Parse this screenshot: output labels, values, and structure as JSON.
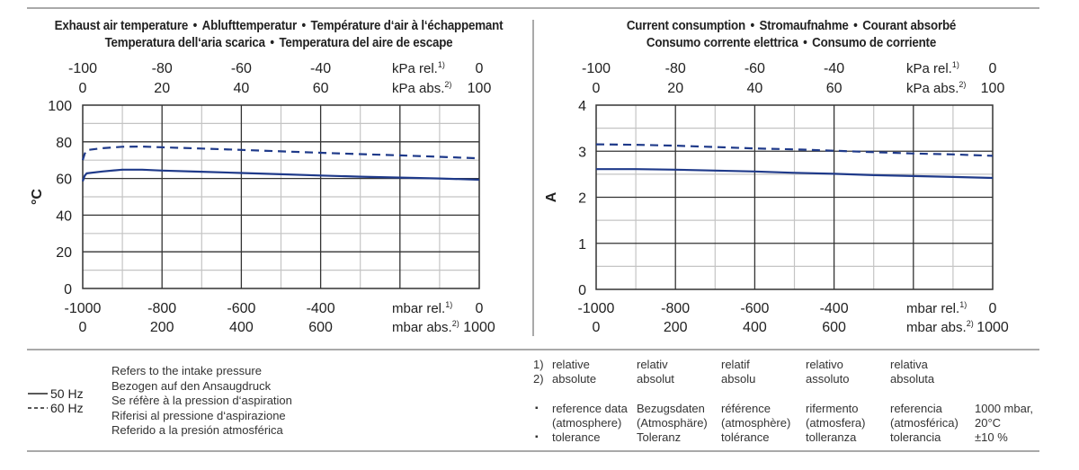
{
  "chart_data": [
    {
      "type": "line",
      "title_lines": [
        [
          "Exhaust air temperature",
          "Ablufttemperatur",
          "Température d‘air à l‘échappemant"
        ],
        [
          "Temperatura dell‘aria scarica",
          "Temperatura del aire de escape"
        ]
      ],
      "ylabel": "°C",
      "ylim": [
        0,
        100
      ],
      "yticks": [
        "0",
        "20",
        "40",
        "60",
        "80",
        "100"
      ],
      "xlim": [
        -1000,
        0
      ],
      "x_bottom_rel": {
        "ticks": [
          "-1000",
          "-800",
          "-600",
          "-400",
          "0"
        ],
        "unit": "mbar rel.",
        "sup": "1)"
      },
      "x_bottom_abs": {
        "ticks": [
          "0",
          "200",
          "400",
          "600",
          "1000"
        ],
        "unit": "mbar abs.",
        "sup": "2)"
      },
      "x_top_rel": {
        "ticks": [
          "-100",
          "-80",
          "-60",
          "-40",
          "0"
        ],
        "unit": "kPa rel.",
        "sup": "1)"
      },
      "x_top_abs": {
        "ticks": [
          "0",
          "20",
          "40",
          "60",
          "100"
        ],
        "unit": "kPa abs.",
        "sup": "2)"
      },
      "grid": true,
      "series": [
        {
          "name": "50 Hz",
          "style": "solid",
          "x": [
            -1000,
            -995,
            -990,
            -950,
            -900,
            -850,
            -800,
            -700,
            -600,
            -500,
            -400,
            -300,
            -200,
            -100,
            0
          ],
          "y": [
            58.5,
            61.5,
            62.8,
            63.8,
            64.8,
            64.8,
            64.3,
            63.7,
            63.0,
            62.3,
            61.6,
            61.0,
            60.5,
            60.0,
            59.3
          ]
        },
        {
          "name": "60 Hz",
          "style": "dashed",
          "x": [
            -1000,
            -995,
            -990,
            -950,
            -900,
            -850,
            -800,
            -700,
            -600,
            -500,
            -400,
            -300,
            -200,
            -100,
            0
          ],
          "y": [
            70.0,
            73.5,
            75.5,
            76.5,
            77.3,
            77.4,
            77.0,
            76.3,
            75.6,
            74.8,
            74.0,
            73.3,
            72.6,
            71.8,
            71.0
          ]
        }
      ]
    },
    {
      "type": "line",
      "title_lines": [
        [
          "Current consumption",
          "Stromaufnahme",
          "Courant absorbé"
        ],
        [
          "Consumo corrente elettrica",
          "Consumo de corriente"
        ]
      ],
      "ylabel": "A",
      "ylim": [
        0,
        4
      ],
      "yticks": [
        "0",
        "1",
        "2",
        "3",
        "4"
      ],
      "xlim": [
        -1000,
        0
      ],
      "x_bottom_rel": {
        "ticks": [
          "-1000",
          "-800",
          "-600",
          "-400",
          "0"
        ],
        "unit": "mbar rel.",
        "sup": "1)"
      },
      "x_bottom_abs": {
        "ticks": [
          "0",
          "200",
          "400",
          "600",
          "1000"
        ],
        "unit": "mbar abs.",
        "sup": "2)"
      },
      "x_top_rel": {
        "ticks": [
          "-100",
          "-80",
          "-60",
          "-40",
          "0"
        ],
        "unit": "kPa rel.",
        "sup": "1)"
      },
      "x_top_abs": {
        "ticks": [
          "0",
          "20",
          "40",
          "60",
          "100"
        ],
        "unit": "kPa abs.",
        "sup": "2)"
      },
      "grid": true,
      "series": [
        {
          "name": "50 Hz",
          "style": "solid",
          "x": [
            -1000,
            -900,
            -800,
            -700,
            -600,
            -500,
            -400,
            -300,
            -200,
            -100,
            0
          ],
          "y": [
            2.61,
            2.61,
            2.6,
            2.58,
            2.56,
            2.53,
            2.51,
            2.48,
            2.46,
            2.44,
            2.42
          ]
        },
        {
          "name": "60 Hz",
          "style": "dashed",
          "x": [
            -1000,
            -900,
            -800,
            -700,
            -600,
            -500,
            -400,
            -300,
            -200,
            -100,
            0
          ],
          "y": [
            3.15,
            3.14,
            3.12,
            3.09,
            3.06,
            3.04,
            3.01,
            2.98,
            2.95,
            2.93,
            2.9
          ]
        }
      ]
    }
  ],
  "legend": {
    "items": [
      {
        "label": "50 Hz",
        "style": "solid"
      },
      {
        "label": "60 Hz",
        "style": "dashed"
      }
    ],
    "pressure_note": [
      "Refers to the intake pressure",
      "Bezogen auf den Ansaugdruck",
      "Se réfère à la pression d‘aspiration",
      "Riferisi al pressione d‘aspirazione",
      "Referido a la presión atmosférica"
    ]
  },
  "notes": {
    "footnotes": [
      {
        "marker": "1)",
        "terms": [
          "relative",
          "relativ",
          "relatif",
          "relativo",
          "relativa"
        ]
      },
      {
        "marker": "2)",
        "terms": [
          "absolute",
          "absolut",
          "absolu",
          "assoluto",
          "absoluta"
        ]
      }
    ],
    "bullets": [
      {
        "marker": "▪",
        "terms": [
          "reference data\n(atmosphere)",
          "Bezugsdaten\n(Atmosphäre)",
          "référence\n(atmosphère)",
          "rifermento\n(atmosfera)",
          "referencia\n(atmosférica)"
        ],
        "value": "1000 mbar,\n20°C"
      },
      {
        "marker": "▪",
        "terms": [
          "tolerance",
          "Toleranz",
          "tolérance",
          "tolleranza",
          "tolerancia"
        ],
        "value": "±10 %"
      }
    ]
  },
  "colors": {
    "series": "#1f3a8a",
    "major_grid": "#333333",
    "minor_grid": "#c4c4c4",
    "rule": "#a9a9a9"
  }
}
